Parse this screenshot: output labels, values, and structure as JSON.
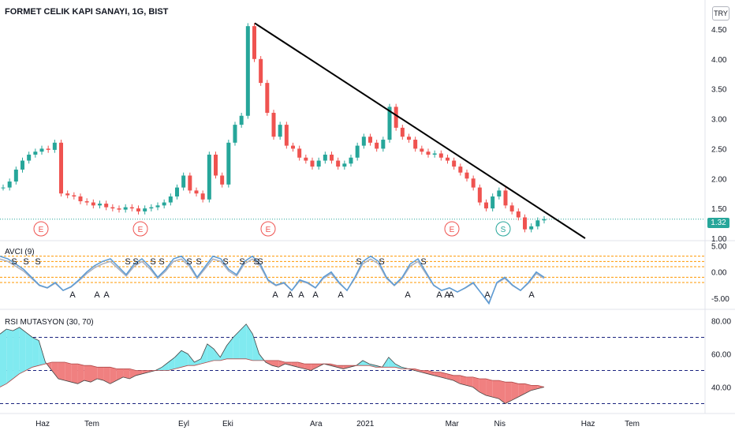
{
  "header": {
    "symbol_title": "FORMET CELIK KAPI SANAYI, 1G, BIST",
    "currency": "TRY",
    "last_price": "1.32"
  },
  "panes": {
    "avci_label": "AVCI (9)",
    "rsi_label": "RSI MUTASYON (30, 70)"
  },
  "colors": {
    "up": "#26a69a",
    "down": "#ef5350",
    "trendline": "#000000",
    "avci_line": "#5b9bd5",
    "rsi_up_fill": "#80eaf0",
    "rsi_down_fill": "#f08080",
    "level_line": "#ff9800",
    "guide_line": "#1a237e"
  },
  "chart_data": [
    {
      "type": "candlestick",
      "title": "FORMET CELIK KAPI SANAYI, 1G, BIST",
      "x_tick_labels": [
        "Haz",
        "Tem",
        "Eyl",
        "Eki",
        "Ara",
        "2021",
        "Mar",
        "Nis",
        "Haz",
        "Tem"
      ],
      "y_tick_labels": [
        "1.00",
        "1.50",
        "2.00",
        "2.50",
        "3.00",
        "3.50",
        "4.00",
        "4.50"
      ],
      "ylim": [
        1.0,
        4.75
      ],
      "close_series": [
        1.85,
        1.95,
        2.15,
        2.3,
        2.4,
        2.45,
        2.5,
        2.48,
        2.6,
        1.75,
        1.72,
        1.7,
        1.62,
        1.6,
        1.55,
        1.58,
        1.52,
        1.5,
        1.48,
        1.52,
        1.5,
        1.45,
        1.5,
        1.52,
        1.55,
        1.6,
        1.7,
        1.85,
        2.05,
        1.8,
        1.75,
        1.65,
        2.4,
        2.05,
        1.9,
        2.6,
        2.9,
        3.05,
        4.55,
        4.0,
        3.6,
        3.1,
        2.7,
        2.9,
        2.55,
        2.5,
        2.35,
        2.3,
        2.2,
        2.3,
        2.4,
        2.3,
        2.2,
        2.25,
        2.35,
        2.55,
        2.7,
        2.6,
        2.5,
        2.65,
        3.2,
        2.85,
        2.7,
        2.65,
        2.5,
        2.45,
        2.4,
        2.42,
        2.35,
        2.3,
        2.2,
        2.1,
        2.0,
        1.85,
        1.6,
        1.5,
        1.7,
        1.8,
        1.55,
        1.45,
        1.35,
        1.15,
        1.2,
        1.3,
        1.32
      ],
      "volume_like_markers": [
        {
          "label": "E",
          "x": "Haz"
        },
        {
          "label": "E",
          "x": "Eyl"
        },
        {
          "label": "E",
          "x": "Eki"
        },
        {
          "label": "E",
          "x": "Mar"
        },
        {
          "label": "S",
          "x": "Nis"
        }
      ],
      "trendline": {
        "from": {
          "x": "Eki",
          "y": 4.6
        },
        "to": {
          "x": "Haz",
          "y": 1.0
        }
      }
    },
    {
      "type": "line",
      "title": "AVCI (9)",
      "y_tick_labels": [
        "5.00",
        "0.00",
        "-5.00"
      ],
      "ylim": [
        -6.5,
        5.5
      ],
      "levels": [
        3.0,
        2.0,
        1.0,
        -1.0,
        -2.0
      ],
      "signals": [
        "S",
        "S",
        "S",
        "S",
        "S",
        "S",
        "S",
        "S",
        "S",
        "S",
        "S",
        "S",
        "S",
        "S",
        "S",
        "S",
        "S",
        "S",
        "A",
        "A",
        "A",
        "A",
        "A",
        "A",
        "A",
        "A",
        "A",
        "A",
        "A",
        "A",
        "A",
        "A",
        "A",
        "A",
        "A",
        "A"
      ],
      "values": [
        3.0,
        2.5,
        1.5,
        0.5,
        -1.0,
        -2.5,
        -3.0,
        -2.0,
        -3.5,
        -2.8,
        -1.5,
        0.0,
        1.2,
        2.0,
        2.5,
        1.0,
        -0.5,
        1.5,
        2.5,
        1.0,
        -1.0,
        0.5,
        2.5,
        3.0,
        1.5,
        -1.0,
        1.0,
        3.0,
        2.5,
        0.5,
        -0.5,
        2.0,
        3.0,
        1.5,
        -1.5,
        -2.5,
        -2.0,
        -3.5,
        -1.5,
        -2.0,
        -3.0,
        -1.0,
        0.0,
        -2.0,
        -3.5,
        -1.0,
        2.0,
        3.0,
        2.0,
        -1.0,
        -2.5,
        -1.0,
        1.5,
        2.5,
        0.0,
        -2.5,
        -3.5,
        -3.0,
        -3.8,
        -3.0,
        -2.0,
        -4.0,
        -6.0,
        -2.0,
        -1.0,
        -2.5,
        -3.5,
        -2.0,
        0.0,
        -1.0
      ]
    },
    {
      "type": "area",
      "title": "RSI MUTASYON (30, 70)",
      "y_tick_labels": [
        "80.00",
        "60.00",
        "40.00"
      ],
      "ylim": [
        25,
        85
      ],
      "levels": [
        70,
        50,
        30
      ],
      "rsi": [
        72,
        75,
        74,
        76,
        73,
        70,
        68,
        55,
        50,
        45,
        44,
        43,
        42,
        44,
        43,
        45,
        44,
        42,
        44,
        46,
        45,
        47,
        48,
        49,
        50,
        52,
        55,
        58,
        62,
        60,
        55,
        57,
        66,
        63,
        58,
        65,
        70,
        74,
        78,
        72,
        60,
        55,
        53,
        52,
        54,
        53,
        52,
        51,
        50,
        52,
        54,
        53,
        52,
        51,
        52,
        53,
        56,
        54,
        53,
        52,
        58,
        54,
        52,
        51,
        50,
        49,
        48,
        47,
        46,
        45,
        44,
        42,
        41,
        40,
        37,
        35,
        34,
        33,
        30,
        32,
        34,
        36,
        38,
        39,
        40
      ],
      "signal": [
        40,
        42,
        45,
        48,
        50,
        52,
        53,
        54,
        55,
        55,
        55,
        54,
        54,
        53,
        53,
        52,
        52,
        52,
        51,
        51,
        51,
        50,
        50,
        50,
        50,
        50,
        50,
        51,
        52,
        53,
        53,
        54,
        55,
        56,
        56,
        57,
        57,
        57,
        57,
        56,
        56,
        56,
        56,
        56,
        55,
        55,
        55,
        54,
        54,
        54,
        54,
        54,
        53,
        53,
        53,
        53,
        53,
        53,
        52,
        52,
        52,
        52,
        51,
        51,
        51,
        50,
        50,
        49,
        49,
        48,
        47,
        47,
        46,
        46,
        45,
        45,
        44,
        44,
        43,
        43,
        42,
        42,
        41,
        41,
        40
      ]
    }
  ]
}
